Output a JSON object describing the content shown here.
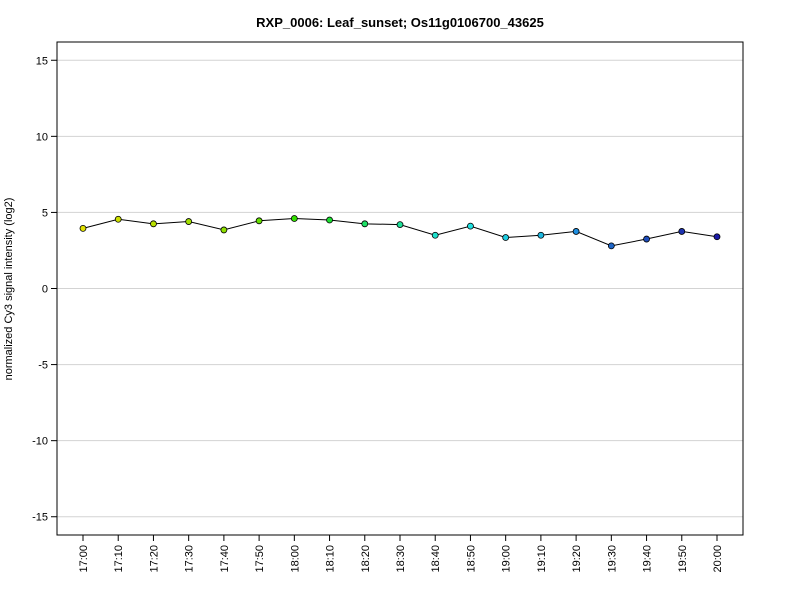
{
  "chart_data": {
    "type": "line",
    "title": "RXP_0006: Leaf_sunset; Os11g0106700_43625",
    "xlabel": "",
    "ylabel": "normalized Cy3 signal intensity (log2)",
    "ylim": [
      -16.2,
      16.2
    ],
    "y_ticks": [
      15,
      10,
      5,
      0,
      -5,
      -10,
      -15
    ],
    "y_tick_labels": [
      "15",
      "10",
      "5",
      "0",
      "-5",
      "-10",
      "-15"
    ],
    "grid": true,
    "legend": "none",
    "categories": [
      "17:00",
      "17:10",
      "17:20",
      "17:30",
      "17:40",
      "17:50",
      "18:00",
      "18:10",
      "18:20",
      "18:30",
      "18:40",
      "18:50",
      "19:00",
      "19:10",
      "19:20",
      "19:30",
      "19:40",
      "19:50",
      "20:00"
    ],
    "series": [
      {
        "values": [
          3.95,
          4.55,
          4.25,
          4.4,
          3.85,
          4.45,
          4.6,
          4.5,
          4.25,
          4.2,
          3.5,
          4.1,
          3.35,
          3.5,
          3.75,
          2.8,
          3.25,
          3.75,
          3.4
        ],
        "point_colors": [
          "#e0e000",
          "#cde000",
          "#b8e000",
          "#a3e000",
          "#8ee000",
          "#66e000",
          "#33e000",
          "#1ee033",
          "#1ee066",
          "#1ee099",
          "#1ee0cc",
          "#1ee0e0",
          "#1ecce0",
          "#1eb8e0",
          "#1e8ee0",
          "#1e66c8",
          "#1e4dbb",
          "#1e33b0",
          "#1a1aa8"
        ]
      }
    ]
  }
}
